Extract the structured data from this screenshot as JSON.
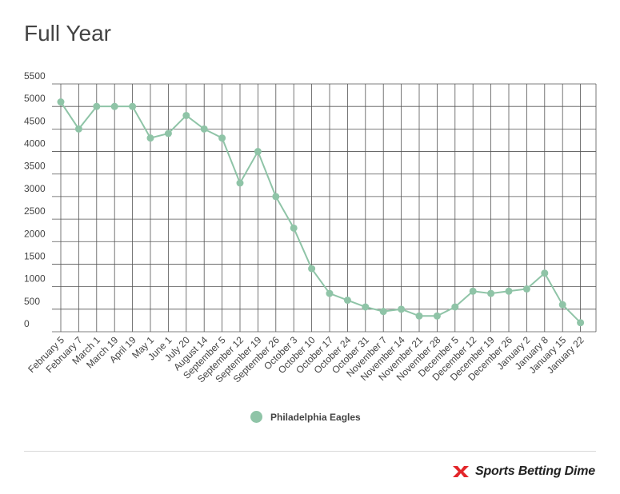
{
  "header": {
    "title": "Full Year"
  },
  "legend": {
    "label": "Philadelphia Eagles"
  },
  "brand": {
    "name": "Sports Betting Dime"
  },
  "colors": {
    "series": "#8fc4a7",
    "grid": "#555555",
    "logo_red": "#e3262a"
  },
  "chart_data": {
    "type": "line",
    "title": "Full Year",
    "xlabel": "",
    "ylabel": "",
    "ylim": [
      0,
      5500
    ],
    "yticks": [
      0,
      500,
      1000,
      1500,
      2000,
      2500,
      3000,
      3500,
      4000,
      4500,
      5000,
      5500
    ],
    "grid": true,
    "legend_position": "bottom-center",
    "categories": [
      "February 5",
      "February 7",
      "March 1",
      "March 19",
      "April 19",
      "May 1",
      "June 1",
      "July 20",
      "August 14",
      "September 5",
      "September 12",
      "September 19",
      "September 26",
      "October 3",
      "October 10",
      "October 17",
      "October 24",
      "October 31",
      "November 7",
      "November 14",
      "November 21",
      "November 28",
      "December 5",
      "December 12",
      "December 19",
      "December 26",
      "January 2",
      "January 8",
      "January 15",
      "January 22"
    ],
    "series": [
      {
        "name": "Philadelphia Eagles",
        "values": [
          5100,
          4500,
          5000,
          5000,
          5000,
          4300,
          4400,
          4800,
          4500,
          4300,
          3300,
          4000,
          3000,
          2300,
          1400,
          850,
          700,
          550,
          450,
          500,
          350,
          350,
          550,
          900,
          850,
          900,
          950,
          1300,
          600,
          200
        ]
      }
    ]
  }
}
